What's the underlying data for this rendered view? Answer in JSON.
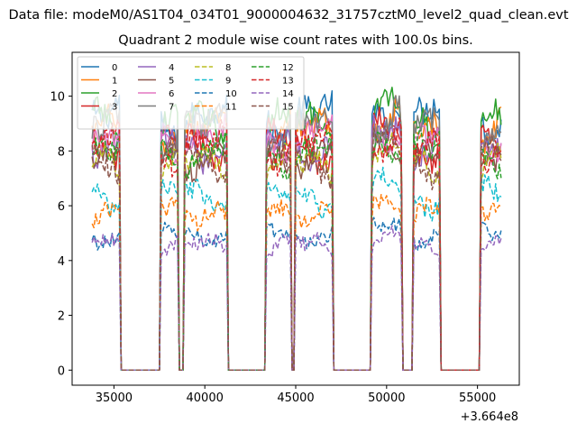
{
  "chart_data": {
    "type": "line",
    "suptitle": "Data file: modeM0/AS1T04_034T01_9000004632_31757cztM0_level2_quad_clean.evt",
    "title": "Quadrant 2 module wise count rates with 100.0s bins.",
    "xlabel": "",
    "ylabel": "",
    "x_offset_label": "+3.664e8",
    "xlim": [
      32700,
      57300
    ],
    "ylim": [
      -0.55,
      11.6
    ],
    "x_ticks": [
      35000,
      40000,
      45000,
      50000,
      55000
    ],
    "x_tick_labels": [
      "35000",
      "40000",
      "45000",
      "50000",
      "55000"
    ],
    "y_ticks": [
      0,
      2,
      4,
      6,
      8,
      10
    ],
    "y_tick_labels": [
      "0",
      "2",
      "4",
      "6",
      "8",
      "10"
    ],
    "bin_seconds": 100,
    "x_start": 33800,
    "x_end": 56300,
    "on_intervals": [
      [
        33800,
        35300
      ],
      [
        37600,
        38500
      ],
      [
        38900,
        41200
      ],
      [
        43400,
        44700
      ],
      [
        45000,
        47000
      ],
      [
        49200,
        50800
      ],
      [
        51500,
        52900
      ],
      [
        55200,
        56300
      ]
    ],
    "legend": {
      "location": "upper-left",
      "columns": 4
    },
    "series": [
      {
        "name": "0",
        "color": "#1f77b4",
        "dash": "solid",
        "level": 9.2
      },
      {
        "name": "1",
        "color": "#ff7f0e",
        "dash": "solid",
        "level": 8.6
      },
      {
        "name": "2",
        "color": "#2ca02c",
        "dash": "solid",
        "level": 8.9
      },
      {
        "name": "3",
        "color": "#d62728",
        "dash": "solid",
        "level": 8.2
      },
      {
        "name": "4",
        "color": "#9467bd",
        "dash": "solid",
        "level": 8.3
      },
      {
        "name": "5",
        "color": "#8c564b",
        "dash": "solid",
        "level": 7.9
      },
      {
        "name": "6",
        "color": "#e377c2",
        "dash": "solid",
        "level": 8.4
      },
      {
        "name": "7",
        "color": "#7f7f7f",
        "dash": "solid",
        "level": 8.7
      },
      {
        "name": "8",
        "color": "#bcbd22",
        "dash": "dashed",
        "level": 7.4
      },
      {
        "name": "9",
        "color": "#17becf",
        "dash": "dashed",
        "level": 6.3
      },
      {
        "name": "10",
        "color": "#1f77b4",
        "dash": "dashed",
        "level": 5.0
      },
      {
        "name": "11",
        "color": "#ff7f0e",
        "dash": "dashed",
        "level": 5.9
      },
      {
        "name": "12",
        "color": "#2ca02c",
        "dash": "dashed",
        "level": 8.0
      },
      {
        "name": "13",
        "color": "#d62728",
        "dash": "dashed",
        "level": 8.1
      },
      {
        "name": "14",
        "color": "#9467bd",
        "dash": "dashed",
        "level": 4.5
      },
      {
        "name": "15",
        "color": "#8c564b",
        "dash": "dashed",
        "level": 7.6
      }
    ]
  }
}
